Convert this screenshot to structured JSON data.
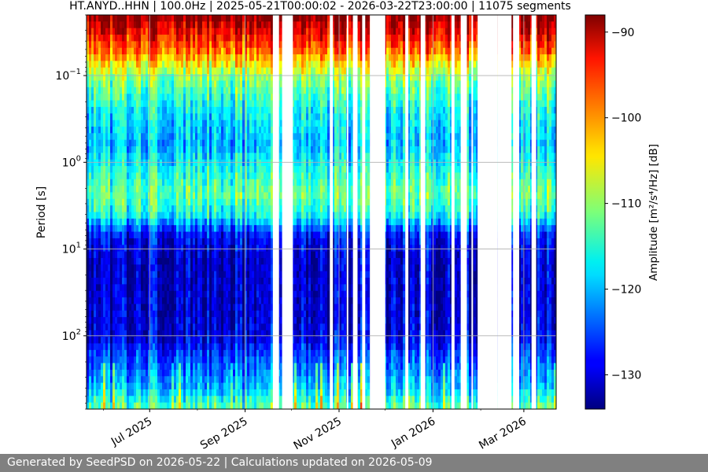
{
  "chart_data": {
    "type": "heatmap",
    "title": "HT.ANYD..HHN | 100.0Hz | 2025-05-21T00:00:02 - 2026-03-22T23:00:00 | 11075 segments",
    "xlabel": "",
    "ylabel": "Period [s]",
    "colorbar_label": "Amplitude [m²/s⁴/Hz] [dB]",
    "y_scale": "log",
    "y_inverted": true,
    "ylim": [
      0.02,
      700
    ],
    "y_ticks": [
      {
        "value": 0.1,
        "base": "10",
        "exp": "−1"
      },
      {
        "value": 1,
        "base": "10",
        "exp": "0"
      },
      {
        "value": 10,
        "base": "10",
        "exp": "1"
      },
      {
        "value": 100,
        "base": "10",
        "exp": "2"
      }
    ],
    "xlim": [
      "2025-05-21",
      "2026-03-22"
    ],
    "x_ticks": [
      "Jul 2025",
      "Sep 2025",
      "Nov 2025",
      "Jan 2026",
      "Mar 2026"
    ],
    "x_tick_dates": [
      "2025-07-01",
      "2025-09-01",
      "2025-11-01",
      "2026-01-01",
      "2026-03-01"
    ],
    "color_range": [
      -134,
      -88
    ],
    "colorbar_ticks": [
      -90,
      -100,
      -110,
      -120,
      -130
    ],
    "colormap": "jet",
    "grid": true,
    "data_gaps": [
      [
        "2025-09-19",
        "2025-09-23"
      ],
      [
        "2025-09-25",
        "2025-10-02"
      ],
      [
        "2025-10-26",
        "2025-10-28"
      ],
      [
        "2025-11-06",
        "2025-11-07"
      ],
      [
        "2025-11-10",
        "2025-11-13"
      ],
      [
        "2025-11-16",
        "2025-11-18"
      ],
      [
        "2025-11-21",
        "2025-12-01"
      ],
      [
        "2025-12-14",
        "2025-12-16"
      ],
      [
        "2025-12-24",
        "2025-12-27"
      ],
      [
        "2026-01-13",
        "2026-01-15"
      ],
      [
        "2026-01-19",
        "2026-01-23"
      ],
      [
        "2026-01-26",
        "2026-01-27"
      ],
      [
        "2026-01-30",
        "2026-02-12"
      ],
      [
        "2026-02-12",
        "2026-02-21"
      ],
      [
        "2026-02-22",
        "2026-02-26"
      ],
      [
        "2026-03-06",
        "2026-03-09"
      ]
    ]
  },
  "footer": "Generated by SeedPSD on 2026-05-22 | Calculations updated on 2026-05-09"
}
